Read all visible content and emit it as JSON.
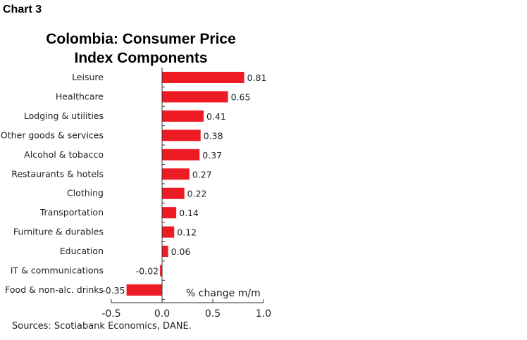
{
  "header": {
    "chart_label": "Chart 3"
  },
  "chart_data": {
    "type": "bar",
    "orientation": "horizontal",
    "title": "Colombia: Consumer Price Index Components",
    "categories": [
      "Leisure",
      "Healthcare",
      "Lodging & utilities",
      "Other goods & services",
      "Alcohol & tobacco",
      "Restaurants & hotels",
      "Clothing",
      "Transportation",
      "Furniture & durables",
      "Education",
      "IT & communications",
      "Food & non-alc. drinks"
    ],
    "values": [
      0.81,
      0.65,
      0.41,
      0.38,
      0.37,
      0.27,
      0.22,
      0.14,
      0.12,
      0.06,
      -0.02,
      -0.35
    ],
    "data_labels": [
      "0.81",
      "0.65",
      "0.41",
      "0.38",
      "0.37",
      "0.27",
      "0.22",
      "0.14",
      "0.12",
      "0.06",
      "-0.02",
      "-0.35"
    ],
    "xlabel": "% change m/m",
    "xlim": [
      -0.5,
      1.0
    ],
    "xticks": [
      "-0.5",
      "0.0",
      "0.5",
      "1.0"
    ],
    "xtick_values": [
      -0.5,
      0,
      0.5,
      1.0
    ],
    "grid": false,
    "bar_color": "#ed1c24"
  },
  "footer": {
    "source": "Sources: Scotiabank Economics, DANE."
  }
}
